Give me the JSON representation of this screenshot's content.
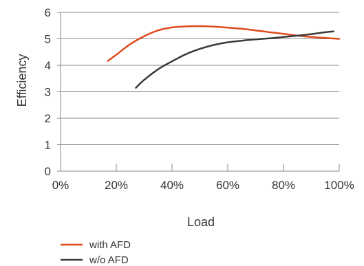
{
  "chart_data": {
    "type": "line",
    "title": "",
    "xlabel": "Load",
    "ylabel": "Efficiency",
    "xlim": [
      0,
      100
    ],
    "ylim": [
      0,
      6
    ],
    "x_ticks": [
      0,
      20,
      40,
      60,
      80,
      100
    ],
    "x_tick_labels": [
      "0%",
      "20%",
      "40%",
      "60%",
      "80%",
      "100%"
    ],
    "y_ticks": [
      0,
      1,
      2,
      3,
      4,
      5,
      6
    ],
    "y_tick_labels": [
      "0",
      "1",
      "2",
      "3",
      "4",
      "5",
      "6"
    ],
    "grid": "horizontal",
    "legend_position": "bottom-left",
    "series": [
      {
        "name": "with AFD",
        "color": "#e04a1a",
        "points": [
          [
            17,
            4.17
          ],
          [
            20,
            4.4
          ],
          [
            25,
            4.8
          ],
          [
            30,
            5.1
          ],
          [
            35,
            5.32
          ],
          [
            40,
            5.43
          ],
          [
            45,
            5.47
          ],
          [
            50,
            5.48
          ],
          [
            55,
            5.46
          ],
          [
            60,
            5.42
          ],
          [
            65,
            5.38
          ],
          [
            70,
            5.32
          ],
          [
            75,
            5.25
          ],
          [
            80,
            5.19
          ],
          [
            85,
            5.12
          ],
          [
            90,
            5.07
          ],
          [
            95,
            5.03
          ],
          [
            100,
            5.0
          ]
        ]
      },
      {
        "name": "w/o AFD",
        "color": "#3a3a3a",
        "points": [
          [
            27,
            3.15
          ],
          [
            30,
            3.45
          ],
          [
            35,
            3.85
          ],
          [
            40,
            4.15
          ],
          [
            45,
            4.42
          ],
          [
            50,
            4.62
          ],
          [
            55,
            4.77
          ],
          [
            60,
            4.87
          ],
          [
            65,
            4.93
          ],
          [
            70,
            4.98
          ],
          [
            75,
            5.02
          ],
          [
            80,
            5.07
          ],
          [
            85,
            5.12
          ],
          [
            90,
            5.18
          ],
          [
            95,
            5.25
          ],
          [
            98,
            5.28
          ]
        ]
      }
    ]
  }
}
